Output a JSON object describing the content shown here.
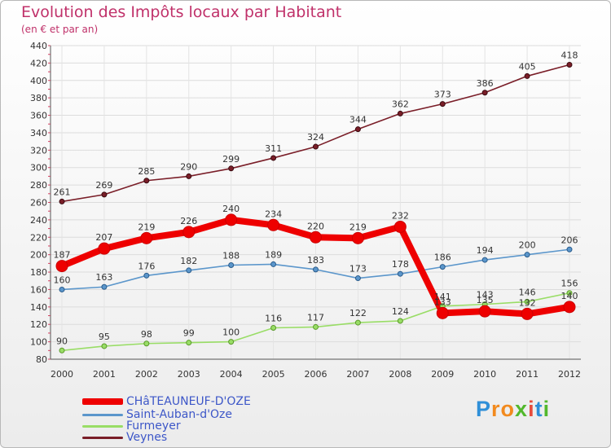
{
  "chart_data": {
    "type": "line",
    "title": "Evolution des Impôts locaux par Habitant",
    "subtitle": "(en € et par an)",
    "xlabel": "",
    "ylabel": "",
    "x": [
      "2000",
      "2001",
      "2002",
      "2003",
      "2004",
      "2005",
      "2006",
      "2007",
      "2008",
      "2009",
      "2010",
      "2011",
      "2012"
    ],
    "ylim": [
      80,
      440
    ],
    "yticks": [
      80,
      100,
      120,
      140,
      160,
      180,
      200,
      220,
      240,
      260,
      280,
      300,
      320,
      340,
      360,
      380,
      400,
      420,
      440
    ],
    "series": [
      {
        "name": "CHâTEAUNEUF-D'OZE",
        "color": "#ee0000",
        "values": [
          187,
          207,
          219,
          226,
          240,
          234,
          220,
          219,
          232,
          133,
          135,
          132,
          140
        ]
      },
      {
        "name": "Saint-Auban-d'Oze",
        "color": "#5b96cb",
        "values": [
          160,
          163,
          176,
          182,
          188,
          189,
          183,
          173,
          178,
          186,
          194,
          200,
          206
        ]
      },
      {
        "name": "Furmeyer",
        "color": "#99dd66",
        "values": [
          90,
          95,
          98,
          99,
          100,
          116,
          117,
          122,
          124,
          141,
          143,
          146,
          156
        ]
      },
      {
        "name": "Veynes",
        "color": "#7a1e28",
        "values": [
          261,
          269,
          285,
          290,
          299,
          311,
          324,
          344,
          362,
          373,
          386,
          405,
          418
        ]
      }
    ],
    "legend_position": "bottom-left"
  },
  "logo": {
    "letters": [
      "P",
      "r",
      "o",
      "x",
      "i",
      "t",
      "i"
    ],
    "colors": [
      "#2f8fd8",
      "#f28a1e",
      "#f28a1e",
      "#52b82c",
      "#e74c3c",
      "#2f8fd8",
      "#52b82c"
    ]
  }
}
